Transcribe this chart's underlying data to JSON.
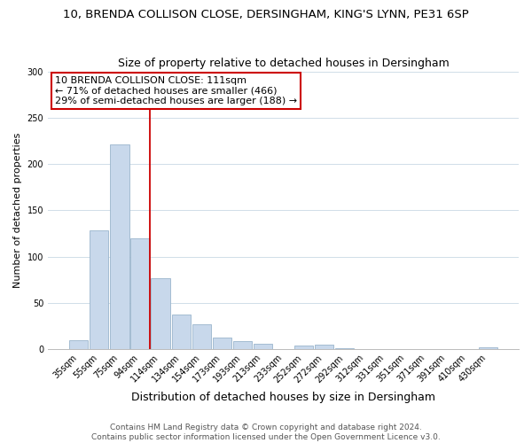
{
  "title": "10, BRENDA COLLISON CLOSE, DERSINGHAM, KING'S LYNN, PE31 6SP",
  "subtitle": "Size of property relative to detached houses in Dersingham",
  "xlabel": "Distribution of detached houses by size in Dersingham",
  "ylabel": "Number of detached properties",
  "bar_labels": [
    "35sqm",
    "55sqm",
    "75sqm",
    "94sqm",
    "114sqm",
    "134sqm",
    "154sqm",
    "173sqm",
    "193sqm",
    "213sqm",
    "233sqm",
    "252sqm",
    "272sqm",
    "292sqm",
    "312sqm",
    "331sqm",
    "351sqm",
    "371sqm",
    "391sqm",
    "410sqm",
    "430sqm"
  ],
  "bar_values": [
    9,
    128,
    221,
    120,
    77,
    37,
    27,
    12,
    8,
    6,
    0,
    4,
    5,
    1,
    0,
    0,
    0,
    0,
    0,
    0,
    2
  ],
  "bar_color": "#c8d8eb",
  "bar_edge_color": "#9ab5cc",
  "marker_line_index": 3,
  "marker_label": "10 BRENDA COLLISON CLOSE: 111sqm",
  "annotation_line1": "← 71% of detached houses are smaller (466)",
  "annotation_line2": "29% of semi-detached houses are larger (188) →",
  "annotation_box_color": "#ffffff",
  "annotation_box_edge": "#cc0000",
  "marker_line_color": "#cc0000",
  "ylim": [
    0,
    300
  ],
  "yticks": [
    0,
    50,
    100,
    150,
    200,
    250,
    300
  ],
  "background_color": "#ffffff",
  "footer_line1": "Contains HM Land Registry data © Crown copyright and database right 2024.",
  "footer_line2": "Contains public sector information licensed under the Open Government Licence v3.0.",
  "grid_color": "#d0dde8",
  "title_fontsize": 9.5,
  "subtitle_fontsize": 9,
  "xlabel_fontsize": 9,
  "ylabel_fontsize": 8,
  "tick_fontsize": 7,
  "annotation_fontsize": 8,
  "footer_fontsize": 6.5
}
